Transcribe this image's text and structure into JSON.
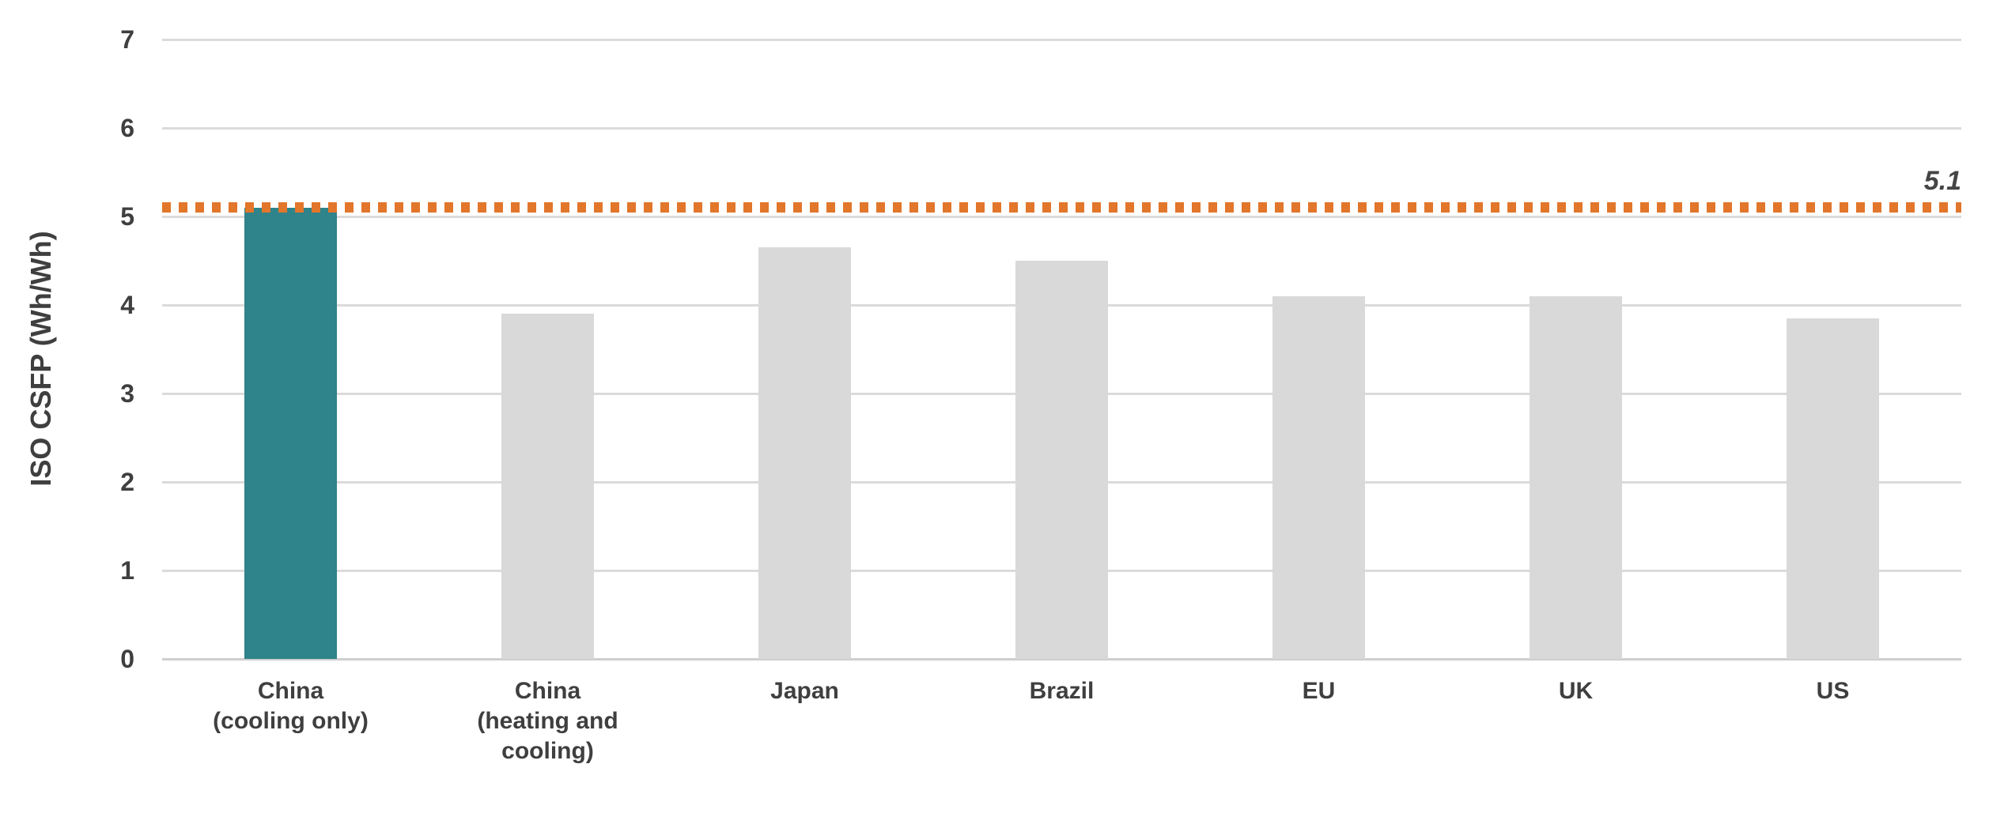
{
  "chart_data": {
    "type": "bar",
    "categories": [
      "China (cooling only)",
      "China (heating and cooling)",
      "Japan",
      "Brazil",
      "EU",
      "UK",
      "US"
    ],
    "category_lines": [
      [
        "China",
        "(cooling only)"
      ],
      [
        "China",
        "(heating and",
        "cooling)"
      ],
      [
        "Japan"
      ],
      [
        "Brazil"
      ],
      [
        "EU"
      ],
      [
        "UK"
      ],
      [
        "US"
      ]
    ],
    "values": [
      5.1,
      3.9,
      4.65,
      4.5,
      4.1,
      4.1,
      3.85
    ],
    "bar_colors": [
      "#2F838A",
      "#D9D9D9",
      "#D9D9D9",
      "#D9D9D9",
      "#D9D9D9",
      "#D9D9D9",
      "#D9D9D9"
    ],
    "title": "",
    "xlabel": "",
    "ylabel": "ISO CSFP (Wh/Wh)",
    "ylim": [
      0,
      7
    ],
    "yticks": [
      0,
      1,
      2,
      3,
      4,
      5,
      6,
      7
    ],
    "grid": "horizontal",
    "legend": "none",
    "reference_line": {
      "value": 5.1,
      "label": "5.1",
      "color": "#E2762B",
      "style": "dotted"
    }
  },
  "colors": {
    "highlight_bar": "#2F838A",
    "default_bar": "#D9D9D9",
    "reference_line": "#E2762B",
    "text": "#3F3F3F",
    "gridline": "#DBDBDB",
    "axis_line": "#CFCFCF"
  }
}
